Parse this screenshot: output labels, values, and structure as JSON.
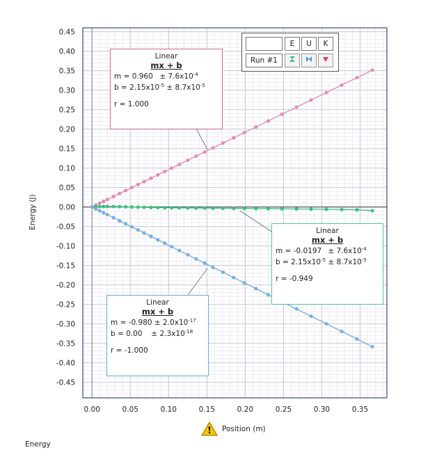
{
  "footer": {
    "panel_label": "Energy"
  },
  "legend": {
    "header_blank": "",
    "columns": [
      "E",
      "U",
      "K"
    ],
    "row_label": "Run #1",
    "icons": [
      "green-hourglass-marker-icon",
      "blue-bowtie-marker-icon",
      "pink-triangle-marker-icon"
    ]
  },
  "fits": {
    "k": {
      "title": "Linear",
      "equation": "mx + b",
      "m_label": "m = 0.960",
      "m_err": "± 7.6x10",
      "m_err_exp": "-4",
      "b_label": "b = 2.15x10",
      "b_exp": "-5",
      "b_err": "± 8.7x10",
      "b_err_exp": "-5",
      "r_label": "r = 1.000"
    },
    "e": {
      "title": "Linear",
      "equation": "mx + b",
      "m_label": "m = -0.0197",
      "m_err": "± 7.6x10",
      "m_err_exp": "-4",
      "b_label": "b = 2.15x10",
      "b_exp": "-5",
      "b_err": "± 8.7x10",
      "b_err_exp": "-5",
      "r_label": "r = -0.949"
    },
    "u": {
      "title": "Linear",
      "equation": "mx + b",
      "m_label": "m = -0.980",
      "m_err": "± 2.0x10",
      "m_err_exp": "-17",
      "b_label": "b = 0.00",
      "b_exp": "",
      "b_err": "± 2.3x10",
      "b_err_exp": "-18",
      "r_label": "r = -1.000"
    }
  },
  "chart_data": {
    "type": "scatter",
    "xlabel": "Position (m)",
    "ylabel": "Energy (J)",
    "xlim": [
      -0.012,
      0.385
    ],
    "ylim": [
      -0.49,
      0.46
    ],
    "xticks": [
      "0.00",
      "0.05",
      "0.10",
      "0.15",
      "0.20",
      "0.25",
      "0.30",
      "0.35"
    ],
    "yticks": [
      "0.45",
      "0.40",
      "0.35",
      "0.30",
      "0.25",
      "0.20",
      "0.15",
      "0.10",
      "0.05",
      "0.00",
      "-0.05",
      "-0.10",
      "-0.15",
      "-0.20",
      "-0.25",
      "-0.30",
      "-0.35",
      "-0.40",
      "-0.45"
    ],
    "grid": true,
    "warning_icon": "warning-triangle-icon",
    "series": [
      {
        "name": "K",
        "color": "#e08fb3",
        "x": [
          0.0,
          0.005,
          0.01,
          0.015,
          0.02,
          0.028,
          0.036,
          0.044,
          0.052,
          0.06,
          0.068,
          0.077,
          0.086,
          0.095,
          0.104,
          0.114,
          0.125,
          0.136,
          0.147,
          0.158,
          0.171,
          0.185,
          0.199,
          0.214,
          0.23,
          0.248,
          0.267,
          0.286,
          0.306,
          0.326,
          0.346,
          0.366
        ],
        "y": [
          0.0,
          0.0048,
          0.0096,
          0.0144,
          0.0192,
          0.0269,
          0.0346,
          0.0422,
          0.0499,
          0.0576,
          0.0653,
          0.0739,
          0.0826,
          0.0912,
          0.0998,
          0.1094,
          0.12,
          0.1306,
          0.1411,
          0.1517,
          0.1642,
          0.1776,
          0.191,
          0.2054,
          0.2208,
          0.2381,
          0.2563,
          0.2746,
          0.2938,
          0.313,
          0.3322,
          0.3514
        ]
      },
      {
        "name": "E",
        "color": "#3fbf7f",
        "x": [
          0.0,
          0.005,
          0.01,
          0.015,
          0.02,
          0.028,
          0.036,
          0.044,
          0.052,
          0.06,
          0.068,
          0.077,
          0.086,
          0.095,
          0.104,
          0.114,
          0.125,
          0.136,
          0.147,
          0.158,
          0.171,
          0.185,
          0.199,
          0.214,
          0.23,
          0.248,
          0.267,
          0.286,
          0.306,
          0.326,
          0.346,
          0.366
        ],
        "y": [
          0.0,
          0.0008,
          0.0012,
          0.0013,
          0.0013,
          0.0012,
          0.0009,
          0.0005,
          0.0,
          -0.0004,
          -0.0008,
          -0.0012,
          -0.0015,
          -0.0018,
          -0.002,
          -0.0022,
          -0.0024,
          -0.0026,
          -0.0028,
          -0.003,
          -0.0032,
          -0.0034,
          -0.0037,
          -0.004,
          -0.0043,
          -0.0046,
          -0.005,
          -0.0054,
          -0.0058,
          -0.0064,
          -0.0072,
          -0.0095
        ]
      },
      {
        "name": "U",
        "color": "#7aaee0",
        "x": [
          0.0,
          0.005,
          0.01,
          0.015,
          0.02,
          0.028,
          0.036,
          0.044,
          0.052,
          0.06,
          0.068,
          0.077,
          0.086,
          0.095,
          0.104,
          0.114,
          0.125,
          0.136,
          0.147,
          0.158,
          0.171,
          0.185,
          0.199,
          0.214,
          0.23,
          0.248,
          0.267,
          0.286,
          0.306,
          0.326,
          0.346,
          0.366
        ],
        "y": [
          0.0,
          -0.0049,
          -0.0098,
          -0.0147,
          -0.0196,
          -0.0274,
          -0.0353,
          -0.0431,
          -0.051,
          -0.0588,
          -0.0666,
          -0.0755,
          -0.0843,
          -0.0931,
          -0.1019,
          -0.1117,
          -0.1225,
          -0.1333,
          -0.1441,
          -0.1548,
          -0.1676,
          -0.1813,
          -0.195,
          -0.2097,
          -0.2254,
          -0.243,
          -0.2617,
          -0.2803,
          -0.2999,
          -0.3195,
          -0.3391,
          -0.3587
        ]
      }
    ]
  }
}
